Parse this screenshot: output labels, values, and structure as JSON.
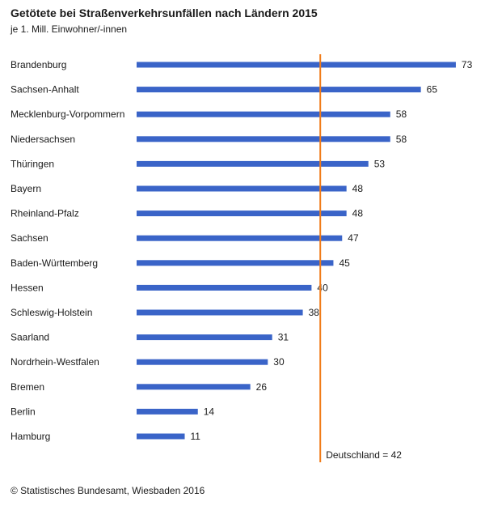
{
  "chart_data": {
    "type": "bar",
    "orientation": "horizontal",
    "title": "Getötete bei Straßenverkehrsunfällen nach Ländern 2015",
    "subtitle": "je 1. Mill. Einwohner/-innen",
    "categories": [
      "Brandenburg",
      "Sachsen-Anhalt",
      "Mecklenburg-Vorpommern",
      "Niedersachsen",
      "Thüringen",
      "Bayern",
      "Rheinland-Pfalz",
      "Sachsen",
      "Baden-Württemberg",
      "Hessen",
      "Schleswig-Holstein",
      "Saarland",
      "Nordrhein-Westfalen",
      "Bremen",
      "Berlin",
      "Hamburg"
    ],
    "values": [
      73,
      65,
      58,
      58,
      53,
      48,
      48,
      47,
      45,
      40,
      38,
      31,
      30,
      26,
      14,
      11
    ],
    "xlim": [
      0,
      73
    ],
    "reference_line": {
      "value": 42,
      "label": "Deutschland = 42"
    },
    "grid": false,
    "bar_color": "#3a64c8",
    "reference_color": "#f07c1a"
  },
  "footer": {
    "source": "© Statistisches Bundesamt, Wiesbaden 2016"
  }
}
